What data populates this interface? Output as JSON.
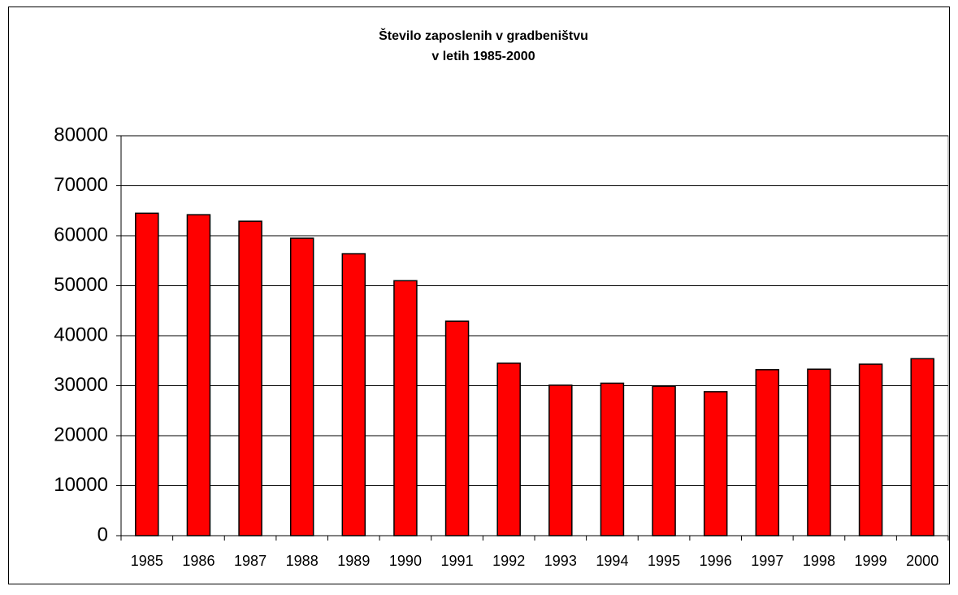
{
  "chart_data": {
    "type": "bar",
    "title": [
      "Število zaposlenih v gradbeništvu",
      "v letih 1985-2000"
    ],
    "categories": [
      "1985",
      "1986",
      "1987",
      "1988",
      "1989",
      "1990",
      "1991",
      "1992",
      "1993",
      "1994",
      "1995",
      "1996",
      "1997",
      "1998",
      "1999",
      "2000"
    ],
    "values": [
      64500,
      64200,
      62900,
      59500,
      56400,
      51000,
      42900,
      34500,
      30100,
      30500,
      29900,
      28800,
      33200,
      33300,
      34300,
      35400
    ],
    "color": "#ff0000",
    "ylim": [
      0,
      80000
    ],
    "yticks": [
      0,
      10000,
      20000,
      30000,
      40000,
      50000,
      60000,
      70000,
      80000
    ],
    "grid": true
  }
}
